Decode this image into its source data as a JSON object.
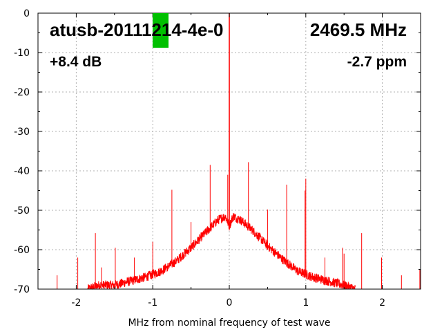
{
  "chart_data": {
    "type": "line",
    "title": "",
    "xlabel": "MHz from nominal frequency of test wave",
    "ylabel": "",
    "xlim": [
      -2.5,
      2.5
    ],
    "ylim": [
      -70,
      0
    ],
    "x_ticks": [
      -2,
      -1,
      0,
      1,
      2
    ],
    "x_tick_labels": [
      "-2",
      "-1",
      "0",
      "1",
      "2"
    ],
    "y_ticks": [
      0,
      -10,
      -20,
      -30,
      -40,
      -50,
      -60,
      -70
    ],
    "y_tick_labels": [
      "0",
      "-10",
      "-20",
      "-30",
      "-40",
      "-50",
      "-60",
      "-70"
    ],
    "grid": true,
    "series_color": "#ff0000",
    "marker_color": "#00c000",
    "annotations": {
      "device": "atusb-20111214-4e-0",
      "frequency": "2469.5 MHz",
      "gain": "+8.4 dB",
      "offset": "-2.7 ppm"
    },
    "noise_floor": {
      "x": [
        -1.85,
        -1.7,
        -1.5,
        -1.3,
        -1.1,
        -0.9,
        -0.7,
        -0.5,
        -0.3,
        -0.15,
        -0.05,
        0.0,
        0.05,
        0.15,
        0.3,
        0.5,
        0.7,
        0.9,
        1.1,
        1.3,
        1.5,
        1.65
      ],
      "y": [
        -70,
        -69,
        -69,
        -68,
        -67,
        -65.5,
        -63,
        -59.5,
        -55.5,
        -52.5,
        -51.5,
        -54,
        -51.5,
        -52.5,
        -55,
        -59,
        -62.5,
        -65.5,
        -67,
        -68,
        -69,
        -70
      ]
    },
    "spurs": {
      "x": [
        -2.25,
        -1.98,
        -1.75,
        -1.67,
        -1.49,
        -1.24,
        -1.0,
        -0.75,
        -0.5,
        -0.25,
        -0.02,
        0.0,
        0.25,
        0.5,
        0.75,
        0.99,
        1.0,
        1.25,
        1.48,
        1.5,
        1.73,
        1.99,
        2.25,
        2.49
      ],
      "y": [
        -66.5,
        -62,
        -55.8,
        -64.5,
        -59.5,
        -62,
        -58,
        -44.8,
        -53,
        -38.5,
        -41,
        0,
        -37.8,
        -49.8,
        -43.5,
        -45,
        -42,
        -62,
        -59.5,
        -61,
        -55.8,
        -62,
        -66.5,
        -65
      ]
    }
  }
}
